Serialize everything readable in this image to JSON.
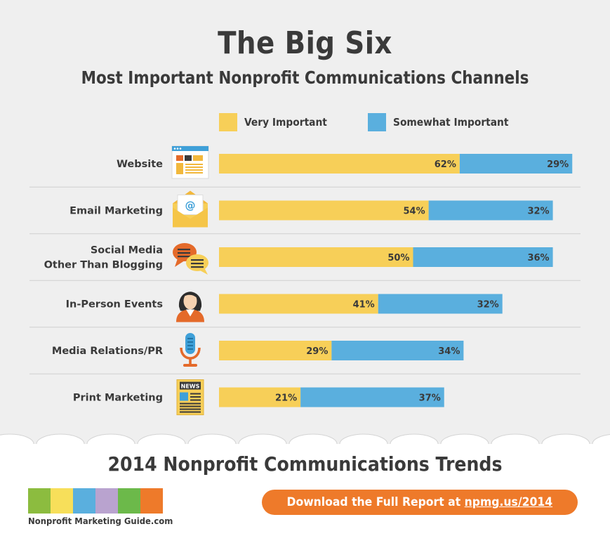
{
  "header": {
    "title": "The Big Six",
    "subtitle": "Most Important Nonprofit Communications Channels"
  },
  "legend": [
    {
      "label": "Very Important",
      "color": "#f7cf58"
    },
    {
      "label": "Somewhat Important",
      "color": "#5aafde"
    }
  ],
  "chart_data": {
    "type": "bar",
    "orientation": "horizontal",
    "stacked": true,
    "categories": [
      [
        "Website"
      ],
      [
        "Email Marketing"
      ],
      [
        "Social Media",
        "Other Than Blogging"
      ],
      [
        "In-Person Events"
      ],
      [
        "Media Relations/PR"
      ],
      [
        "Print Marketing"
      ]
    ],
    "icons": [
      "website-icon",
      "email-icon",
      "chat-bubbles-icon",
      "person-icon",
      "microphone-icon",
      "newspaper-icon"
    ],
    "series": [
      {
        "name": "Very Important",
        "values": [
          62,
          54,
          50,
          41,
          29,
          21
        ],
        "color": "#f7cf58"
      },
      {
        "name": "Somewhat Important",
        "values": [
          29,
          32,
          36,
          32,
          34,
          37
        ],
        "color": "#5aafde"
      }
    ],
    "value_suffix": "%",
    "xlim": [
      0,
      91
    ],
    "grid": false,
    "legend_position": "top"
  },
  "footer": {
    "title": "2014 Nonprofit Communications Trends",
    "logo_text": "Nonprofit Marketing Guide.com",
    "logo_colors": [
      "#8cbc3f",
      "#f7df5a",
      "#5aafde",
      "#b9a3cf",
      "#6cb94a",
      "#ee7a2a"
    ],
    "cta_prefix": "Download the Full Report at ",
    "cta_link": "npmg.us/2014",
    "cta_color": "#ee7a2a"
  }
}
